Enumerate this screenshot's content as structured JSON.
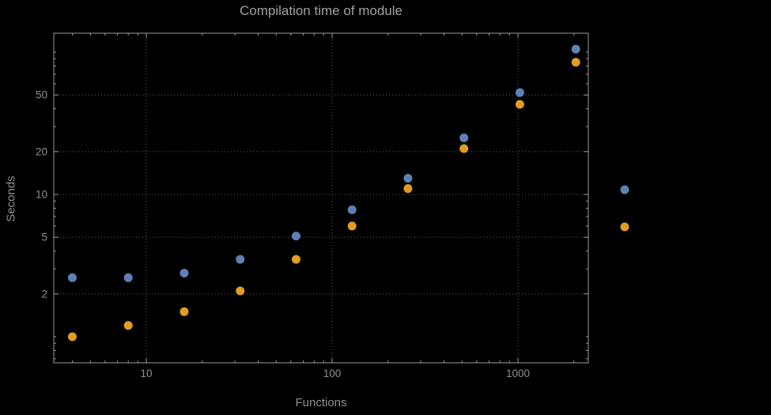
{
  "title": "Compilation time of module",
  "colors": {
    "background": "#000000",
    "frame": "#9a9a9a",
    "gridline": "#5f5f5f",
    "title_text": "#a0a0a0",
    "tick_text": "#8f8f8f",
    "series1_blue": "#5e81b5",
    "series2_orange": "#e19c24"
  },
  "chart_data": {
    "type": "scatter",
    "title": "Compilation time of module",
    "xlabel": "Functions",
    "ylabel": "Seconds",
    "x_scale": "log",
    "y_scale": "log",
    "xlim": [
      3.2,
      2400
    ],
    "ylim": [
      0.66,
      136
    ],
    "grid": "dotted",
    "x_ticks": [
      {
        "value": 10,
        "label": "10"
      },
      {
        "value": 100,
        "label": "100"
      },
      {
        "value": 1000,
        "label": "1000"
      }
    ],
    "y_ticks": [
      {
        "value": 2,
        "label": "2"
      },
      {
        "value": 5,
        "label": "5"
      },
      {
        "value": 10,
        "label": "10"
      },
      {
        "value": 20,
        "label": "20"
      },
      {
        "value": 50,
        "label": "50"
      }
    ],
    "x": [
      4,
      8,
      16,
      32,
      64,
      128,
      256,
      512,
      1024,
      2048
    ],
    "series": [
      {
        "name": "blue",
        "color": "#5e81b5",
        "values": [
          2.6,
          2.6,
          2.8,
          3.5,
          5.1,
          7.8,
          13,
          25,
          52,
          105
        ]
      },
      {
        "name": "orange",
        "color": "#e19c24",
        "values": [
          1.0,
          1.2,
          1.5,
          2.1,
          3.5,
          6.0,
          11,
          21,
          43,
          85
        ]
      }
    ],
    "legend": {
      "position": "outside-right",
      "markers": [
        {
          "series": "blue",
          "color": "#5e81b5"
        },
        {
          "series": "orange",
          "color": "#e19c24"
        }
      ]
    }
  }
}
